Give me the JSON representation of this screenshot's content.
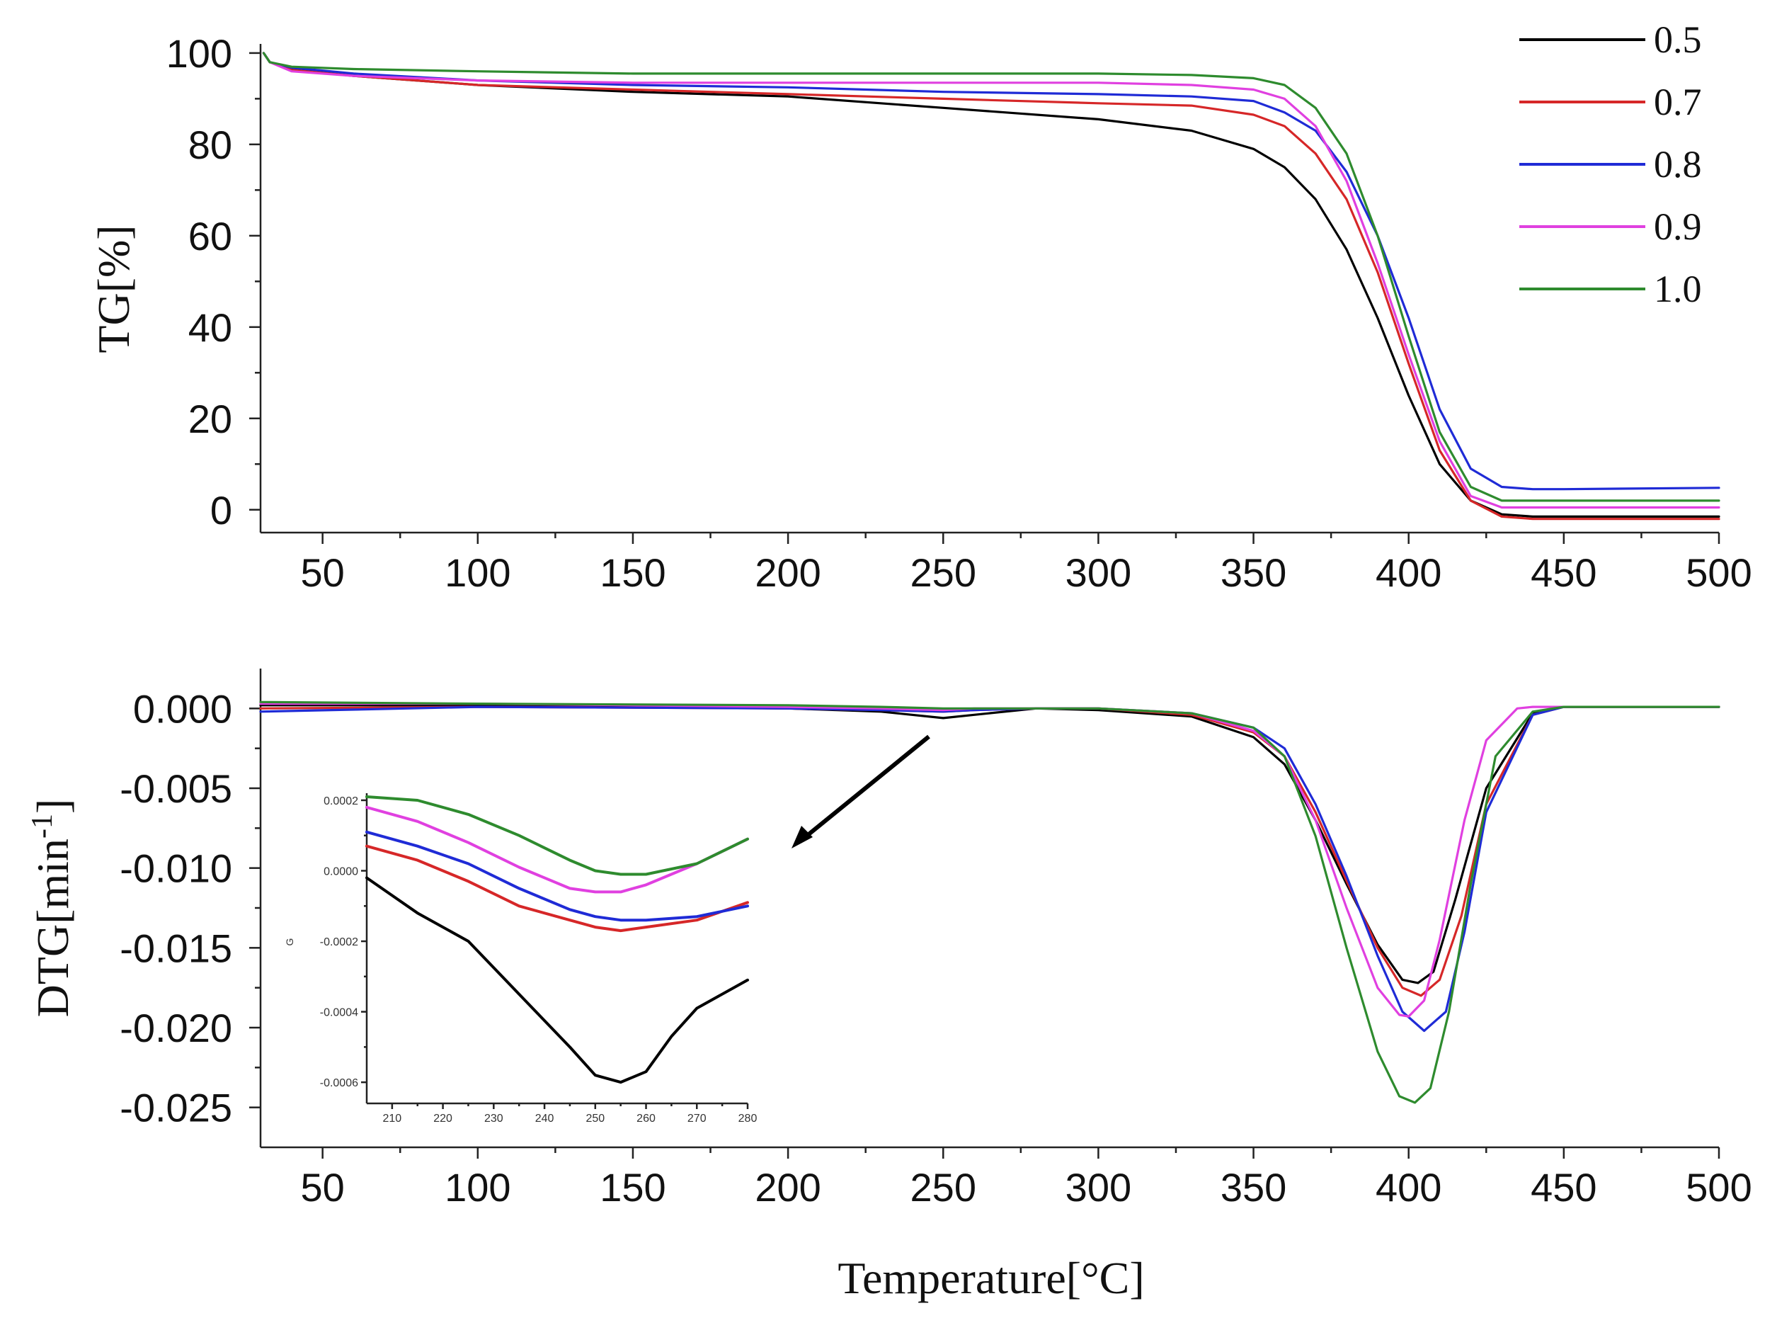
{
  "chart_data": [
    {
      "type": "line",
      "id": "tg",
      "title": "",
      "xlabel": "Temperature[°C]",
      "ylabel": "TG[%]",
      "xlim": [
        30,
        500
      ],
      "ylim": [
        -5,
        102
      ],
      "xticks": [
        50,
        100,
        150,
        200,
        250,
        300,
        350,
        400,
        450,
        500
      ],
      "yticks": [
        0,
        20,
        40,
        60,
        80,
        100
      ],
      "legend": {
        "placement": "top-right",
        "entries": [
          "0.5",
          "0.7",
          "0.8",
          "0.9",
          "1.0"
        ]
      },
      "series": [
        {
          "name": "0.5",
          "color": "#000000",
          "x": [
            31,
            33,
            40,
            60,
            100,
            150,
            200,
            250,
            300,
            330,
            350,
            360,
            370,
            380,
            390,
            400,
            410,
            420,
            430,
            440,
            450,
            500
          ],
          "y": [
            100,
            98,
            96.5,
            95,
            93,
            91.5,
            90.5,
            88,
            85.5,
            83,
            79,
            75,
            68,
            57,
            42,
            25,
            10,
            2,
            -1,
            -1.5,
            -1.5,
            -1.5
          ]
        },
        {
          "name": "0.7",
          "color": "#d62728",
          "x": [
            31,
            33,
            40,
            60,
            100,
            150,
            200,
            250,
            300,
            330,
            350,
            360,
            370,
            380,
            390,
            400,
            410,
            420,
            430,
            440,
            450,
            500
          ],
          "y": [
            100,
            98,
            96.3,
            95,
            93,
            92,
            91,
            90,
            89,
            88.5,
            86.5,
            84,
            78,
            68,
            52,
            32,
            13,
            2,
            -1.5,
            -2,
            -2,
            -2
          ]
        },
        {
          "name": "0.8",
          "color": "#1f2bd6",
          "x": [
            31,
            33,
            40,
            60,
            100,
            150,
            200,
            250,
            300,
            330,
            350,
            360,
            370,
            380,
            390,
            400,
            410,
            420,
            430,
            440,
            450,
            500
          ],
          "y": [
            100,
            98,
            96.8,
            95.5,
            94,
            93,
            92.5,
            91.5,
            91,
            90.5,
            89.5,
            87,
            83,
            74,
            60,
            42,
            22,
            9,
            5,
            4.5,
            4.5,
            4.8
          ]
        },
        {
          "name": "0.9",
          "color": "#e040e0",
          "x": [
            31,
            33,
            40,
            60,
            100,
            150,
            200,
            250,
            300,
            330,
            350,
            360,
            370,
            380,
            390,
            400,
            410,
            420,
            430,
            440,
            450,
            500
          ],
          "y": [
            100,
            98,
            96,
            95,
            94,
            93.5,
            93.5,
            93.5,
            93.5,
            93,
            92,
            90,
            84,
            72,
            54,
            34,
            15,
            3,
            0.5,
            0.5,
            0.5,
            0.5
          ]
        },
        {
          "name": "1.0",
          "color": "#2e8b2e",
          "x": [
            31,
            33,
            40,
            60,
            100,
            150,
            200,
            250,
            300,
            330,
            350,
            360,
            370,
            380,
            390,
            400,
            410,
            420,
            430,
            440,
            450,
            500
          ],
          "y": [
            100,
            98,
            97,
            96.5,
            96,
            95.5,
            95.5,
            95.5,
            95.5,
            95.2,
            94.5,
            93,
            88,
            78,
            60,
            38,
            17,
            5,
            2,
            2,
            2,
            2
          ]
        }
      ]
    },
    {
      "type": "line",
      "id": "dtg",
      "title": "",
      "xlabel": "Temperature[°C]",
      "ylabel": "DTG[min⁻¹]",
      "ylabel_main": "DTG[min",
      "ylabel_sup": "-1",
      "ylabel_close": "]",
      "xlim": [
        30,
        500
      ],
      "ylim": [
        -0.0275,
        0.0025
      ],
      "xticks": [
        50,
        100,
        150,
        200,
        250,
        300,
        350,
        400,
        450,
        500
      ],
      "yticks": [
        0.0,
        -0.005,
        -0.01,
        -0.015,
        -0.02,
        -0.025
      ],
      "ytick_labels": [
        "0.000",
        "-0.005",
        "-0.010",
        "-0.015",
        "-0.020",
        "-0.025"
      ],
      "series": [
        {
          "name": "0.5",
          "color": "#000000",
          "x": [
            30,
            100,
            200,
            230,
            250,
            260,
            280,
            300,
            330,
            350,
            360,
            370,
            380,
            390,
            398,
            403,
            408,
            415,
            425,
            440,
            450,
            500
          ],
          "y": [
            0.0002,
            0.0002,
            0,
            -0.0002,
            -0.0006,
            -0.0004,
            0,
            -0.0001,
            -0.0005,
            -0.0018,
            -0.0035,
            -0.007,
            -0.011,
            -0.0148,
            -0.017,
            -0.0172,
            -0.0165,
            -0.012,
            -0.005,
            -0.0003,
            0.0001,
            0.0001
          ]
        },
        {
          "name": "0.7",
          "color": "#d62728",
          "x": [
            30,
            100,
            200,
            230,
            250,
            260,
            280,
            300,
            330,
            350,
            360,
            370,
            380,
            390,
            398,
            404,
            410,
            417,
            425,
            440,
            450,
            500
          ],
          "y": [
            0,
            0.0001,
            0,
            -0.0001,
            -0.0002,
            -0.0001,
            0,
            0,
            -0.0004,
            -0.0015,
            -0.003,
            -0.0065,
            -0.0108,
            -0.015,
            -0.0175,
            -0.018,
            -0.017,
            -0.013,
            -0.006,
            -0.0004,
            0.0001,
            0.0001
          ]
        },
        {
          "name": "0.8",
          "color": "#1f2bd6",
          "x": [
            30,
            100,
            200,
            230,
            250,
            260,
            280,
            300,
            330,
            350,
            360,
            370,
            380,
            390,
            398,
            405,
            412,
            418,
            425,
            440,
            450,
            500
          ],
          "y": [
            -0.0002,
            0.0001,
            0,
            -0.0001,
            -0.0002,
            -0.0001,
            0,
            0,
            -0.0003,
            -0.0012,
            -0.0025,
            -0.006,
            -0.0105,
            -0.0155,
            -0.019,
            -0.0202,
            -0.019,
            -0.014,
            -0.0065,
            -0.0004,
            0.0001,
            0.0001
          ]
        },
        {
          "name": "0.9",
          "color": "#e040e0",
          "x": [
            30,
            100,
            200,
            230,
            250,
            260,
            280,
            300,
            330,
            350,
            360,
            370,
            380,
            390,
            397,
            400,
            405,
            410,
            418,
            425,
            435,
            440,
            450,
            500
          ],
          "y": [
            0.0003,
            0.0003,
            0.0001,
            0,
            -0.0001,
            0,
            0,
            0,
            -0.0003,
            -0.0014,
            -0.003,
            -0.007,
            -0.0125,
            -0.0175,
            -0.0192,
            -0.0193,
            -0.0183,
            -0.0145,
            -0.007,
            -0.002,
            0,
            0.0001,
            0.0001,
            0.0001
          ]
        },
        {
          "name": "1.0",
          "color": "#2e8b2e",
          "x": [
            30,
            100,
            200,
            230,
            250,
            260,
            280,
            300,
            330,
            350,
            360,
            370,
            380,
            390,
            397,
            402,
            407,
            413,
            420,
            428,
            440,
            450,
            500
          ],
          "y": [
            0.0004,
            0.0003,
            0.0002,
            0.0001,
            0,
            0,
            0,
            0,
            -0.0003,
            -0.0012,
            -0.003,
            -0.008,
            -0.015,
            -0.0215,
            -0.0243,
            -0.0247,
            -0.0238,
            -0.019,
            -0.011,
            -0.003,
            -0.0002,
            0.0001,
            0.0001
          ]
        }
      ]
    },
    {
      "type": "line",
      "id": "dtg-inset",
      "title": "",
      "xlabel": "",
      "ylabel": "G",
      "xlim": [
        205,
        280
      ],
      "ylim": [
        -0.00066,
        0.00022
      ],
      "xticks": [
        210,
        220,
        230,
        240,
        250,
        260,
        270,
        280
      ],
      "yticks": [
        0.0002,
        0.0,
        -0.0002,
        -0.0004,
        -0.0006
      ],
      "ytick_labels": [
        "0.0002",
        "0.0000",
        "-0.0002",
        "-0.0004",
        "-0.0006"
      ],
      "series": [
        {
          "name": "0.5",
          "color": "#000000",
          "x": [
            205,
            215,
            225,
            235,
            245,
            250,
            255,
            260,
            265,
            270,
            280
          ],
          "y": [
            -2e-05,
            -0.00012,
            -0.0002,
            -0.00035,
            -0.0005,
            -0.00058,
            -0.0006,
            -0.00057,
            -0.00047,
            -0.00039,
            -0.00031
          ]
        },
        {
          "name": "0.7",
          "color": "#d62728",
          "x": [
            205,
            215,
            225,
            235,
            245,
            250,
            255,
            260,
            270,
            280
          ],
          "y": [
            7e-05,
            3e-05,
            -3e-05,
            -0.0001,
            -0.00014,
            -0.00016,
            -0.00017,
            -0.00016,
            -0.00014,
            -9e-05
          ]
        },
        {
          "name": "0.8",
          "color": "#1f2bd6",
          "x": [
            205,
            215,
            225,
            235,
            245,
            250,
            255,
            260,
            270,
            280
          ],
          "y": [
            0.00011,
            7e-05,
            2e-05,
            -5e-05,
            -0.00011,
            -0.00013,
            -0.00014,
            -0.00014,
            -0.00013,
            -0.0001
          ]
        },
        {
          "name": "0.9",
          "color": "#e040e0",
          "x": [
            205,
            215,
            225,
            235,
            245,
            250,
            255,
            260,
            270,
            280
          ],
          "y": [
            0.00018,
            0.00014,
            8e-05,
            1e-05,
            -5e-05,
            -6e-05,
            -6e-05,
            -4e-05,
            2e-05,
            9e-05
          ]
        },
        {
          "name": "1.0",
          "color": "#2e8b2e",
          "x": [
            205,
            215,
            225,
            235,
            245,
            250,
            255,
            260,
            270,
            280
          ],
          "y": [
            0.00021,
            0.0002,
            0.00016,
            0.0001,
            3e-05,
            0,
            -1e-05,
            -1e-05,
            2e-05,
            9e-05
          ]
        }
      ]
    }
  ]
}
